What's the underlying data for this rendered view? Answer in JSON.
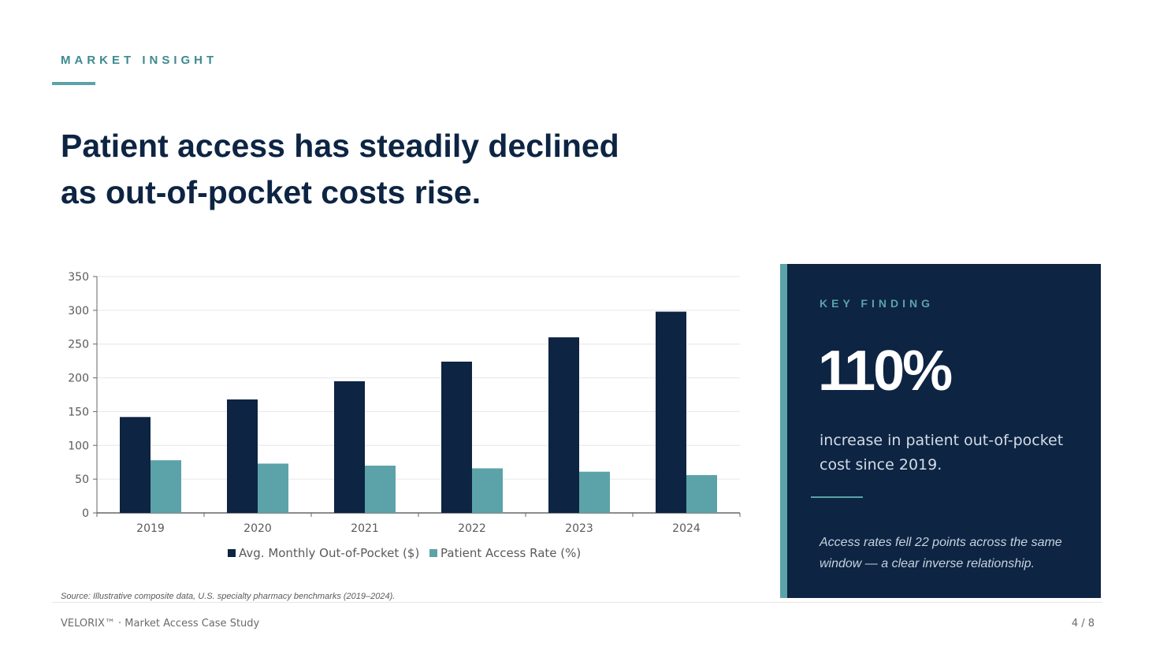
{
  "header": {
    "eyebrow": "MARKET INSIGHT",
    "title_line1": "Patient access has steadily declined",
    "title_line2": "as out-of-pocket costs rise."
  },
  "chart_data": {
    "type": "bar",
    "categories": [
      "2019",
      "2020",
      "2021",
      "2022",
      "2023",
      "2024"
    ],
    "series": [
      {
        "name": "Avg. Monthly Out-of-Pocket ($)",
        "color": "#0d2443",
        "values": [
          142,
          168,
          195,
          224,
          260,
          298
        ]
      },
      {
        "name": "Patient Access Rate (%)",
        "color": "#5ba3a8",
        "values": [
          78,
          73,
          70,
          66,
          61,
          56
        ]
      }
    ],
    "yticks": [
      0,
      50,
      100,
      150,
      200,
      250,
      300,
      350
    ],
    "ylim": [
      0,
      350
    ],
    "title": "",
    "xlabel": "",
    "ylabel": "",
    "grid": true,
    "legend": "bottom-center"
  },
  "source": "Source: Illustrative composite data, U.S. specialty pharmacy benchmarks (2019–2024).",
  "key_finding": {
    "label": "KEY FINDING",
    "value": "110%",
    "desc": "increase in patient out-of-pocket cost since 2019.",
    "note": "Access rates fell 22 points across the same window — a clear inverse relationship."
  },
  "footer": {
    "brand": "VELORIX™  ·  Market Access Case Study",
    "page": "4 / 8"
  },
  "colors": {
    "navy": "#0d2443",
    "teal": "#5ba3a8",
    "teal_dark": "#3d8a90"
  }
}
